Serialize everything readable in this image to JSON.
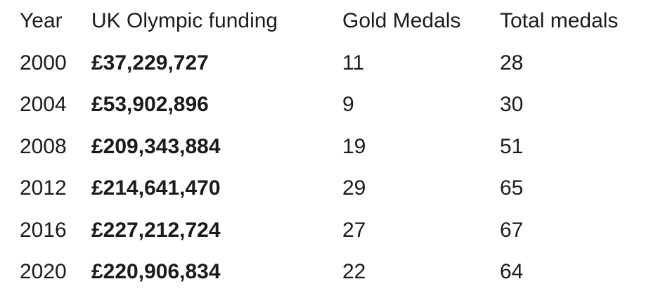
{
  "table": {
    "headers": [
      "Year",
      "UK Olympic funding",
      "Gold Medals",
      "Total medals"
    ],
    "rows": [
      {
        "year": "2000",
        "funding": "£37,229,727",
        "gold": "11",
        "total": "28"
      },
      {
        "year": "2004",
        "funding": "£53,902,896",
        "gold": "9",
        "total": "30"
      },
      {
        "year": "2008",
        "funding": "£209,343,884",
        "gold": "19",
        "total": "51"
      },
      {
        "year": "2012",
        "funding": "£214,641,470",
        "gold": "29",
        "total": "65"
      },
      {
        "year": "2016",
        "funding": "£227,212,724",
        "gold": "27",
        "total": "67"
      },
      {
        "year": "2020",
        "funding": "£220,906,834",
        "gold": "22",
        "total": "64"
      }
    ]
  }
}
